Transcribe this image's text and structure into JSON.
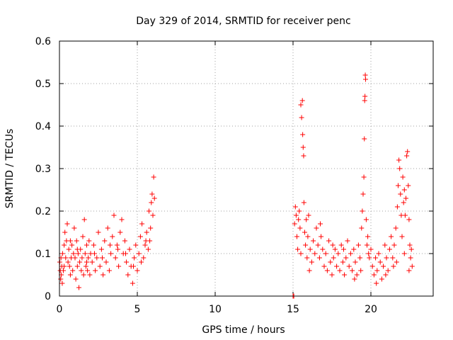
{
  "chart_data": {
    "type": "scatter",
    "title": "Day 329 of 2014, SRMTID for receiver penc",
    "xlabel": "GPS time / hours",
    "ylabel": "SRMTID / TECUs",
    "xlim": [
      0,
      24
    ],
    "ylim": [
      0,
      0.6
    ],
    "xticks": [
      0,
      5,
      10,
      15,
      20
    ],
    "xtick_labels": [
      "0",
      "5",
      "10",
      "15",
      "20"
    ],
    "yticks": [
      0,
      0.1,
      0.2,
      0.3,
      0.4,
      0.5,
      0.6
    ],
    "ytick_labels": [
      "0",
      "0.1",
      "0.2",
      "0.3",
      "0.4",
      "0.5",
      "0.6"
    ],
    "grid": true,
    "marker": "+",
    "series": [
      {
        "name": "SRMTID",
        "color": "#ff0000",
        "points": [
          [
            0.02,
            0.08
          ],
          [
            0.05,
            0.06
          ],
          [
            0.08,
            0.04
          ],
          [
            0.1,
            0.09
          ],
          [
            0.12,
            0.05
          ],
          [
            0.15,
            0.07
          ],
          [
            0.18,
            0.03
          ],
          [
            0.2,
            0.1
          ],
          [
            0.25,
            0.06
          ],
          [
            0.3,
            0.12
          ],
          [
            0.35,
            0.15
          ],
          [
            0.4,
            0.09
          ],
          [
            0.45,
            0.13
          ],
          [
            0.5,
            0.17
          ],
          [
            0.55,
            0.08
          ],
          [
            0.6,
            0.11
          ],
          [
            0.65,
            0.07
          ],
          [
            0.7,
            0.05
          ],
          [
            0.75,
            0.09
          ],
          [
            0.8,
            0.12
          ],
          [
            0.85,
            0.06
          ],
          [
            0.9,
            0.1
          ],
          [
            0.95,
            0.16
          ],
          [
            1.0,
            0.09
          ],
          [
            1.05,
            0.04
          ],
          [
            1.1,
            0.13
          ],
          [
            1.15,
            0.07
          ],
          [
            1.2,
            0.1
          ],
          [
            1.25,
            0.02
          ],
          [
            1.3,
            0.08
          ],
          [
            1.35,
            0.11
          ],
          [
            1.4,
            0.06
          ],
          [
            1.45,
            0.09
          ],
          [
            1.5,
            0.14
          ],
          [
            1.55,
            0.05
          ],
          [
            1.6,
            0.18
          ],
          [
            1.65,
            0.1
          ],
          [
            1.7,
            0.07
          ],
          [
            1.75,
            0.12
          ],
          [
            1.8,
            0.06
          ],
          [
            1.85,
            0.09
          ],
          [
            1.9,
            0.13
          ],
          [
            1.95,
            0.05
          ],
          [
            2.0,
            0.1
          ],
          [
            2.1,
            0.08
          ],
          [
            2.2,
            0.12
          ],
          [
            2.3,
            0.06
          ],
          [
            2.4,
            0.09
          ],
          [
            2.5,
            0.15
          ],
          [
            2.6,
            0.07
          ],
          [
            2.7,
            0.11
          ],
          [
            2.8,
            0.05
          ],
          [
            2.9,
            0.13
          ],
          [
            3.0,
            0.08
          ],
          [
            3.1,
            0.16
          ],
          [
            3.2,
            0.06
          ],
          [
            3.3,
            0.1
          ],
          [
            3.4,
            0.14
          ],
          [
            3.5,
            0.19
          ],
          [
            3.6,
            0.09
          ],
          [
            3.7,
            0.12
          ],
          [
            3.8,
            0.07
          ],
          [
            3.9,
            0.15
          ],
          [
            4.0,
            0.18
          ],
          [
            4.1,
            0.1
          ],
          [
            4.2,
            0.13
          ],
          [
            4.3,
            0.08
          ],
          [
            4.4,
            0.05
          ],
          [
            4.5,
            0.11
          ],
          [
            4.6,
            0.07
          ],
          [
            4.7,
            0.03
          ],
          [
            4.8,
            0.09
          ],
          [
            4.9,
            0.12
          ],
          [
            5.0,
            0.06
          ],
          [
            5.1,
            0.1
          ],
          [
            5.2,
            0.14
          ],
          [
            5.3,
            0.17
          ],
          [
            5.4,
            0.09
          ],
          [
            5.5,
            0.12
          ],
          [
            5.6,
            0.15
          ],
          [
            5.7,
            0.11
          ],
          [
            5.75,
            0.2
          ],
          [
            5.8,
            0.13
          ],
          [
            5.85,
            0.16
          ],
          [
            5.9,
            0.22
          ],
          [
            5.95,
            0.24
          ],
          [
            6.0,
            0.19
          ],
          [
            6.05,
            0.28
          ],
          [
            6.1,
            0.23
          ],
          [
            0.3,
            0.07
          ],
          [
            0.7,
            0.13
          ],
          [
            1.15,
            0.11
          ],
          [
            1.75,
            0.08
          ],
          [
            2.25,
            0.1
          ],
          [
            2.75,
            0.09
          ],
          [
            3.25,
            0.12
          ],
          [
            3.75,
            0.11
          ],
          [
            4.25,
            0.1
          ],
          [
            4.75,
            0.07
          ],
          [
            5.25,
            0.08
          ],
          [
            5.55,
            0.13
          ],
          [
            15.0,
            0.0
          ],
          [
            15.05,
            0.0
          ],
          [
            15.1,
            0.17
          ],
          [
            15.15,
            0.21
          ],
          [
            15.2,
            0.19
          ],
          [
            15.25,
            0.14
          ],
          [
            15.3,
            0.11
          ],
          [
            15.35,
            0.18
          ],
          [
            15.4,
            0.2
          ],
          [
            15.45,
            0.16
          ],
          [
            15.5,
            0.45
          ],
          [
            15.55,
            0.42
          ],
          [
            15.6,
            0.46
          ],
          [
            15.62,
            0.38
          ],
          [
            15.65,
            0.35
          ],
          [
            15.68,
            0.33
          ],
          [
            15.7,
            0.22
          ],
          [
            15.75,
            0.15
          ],
          [
            15.8,
            0.12
          ],
          [
            15.85,
            0.18
          ],
          [
            15.9,
            0.09
          ],
          [
            15.95,
            0.14
          ],
          [
            16.0,
            0.19
          ],
          [
            16.1,
            0.11
          ],
          [
            16.2,
            0.08
          ],
          [
            16.3,
            0.13
          ],
          [
            16.4,
            0.1
          ],
          [
            16.5,
            0.16
          ],
          [
            16.6,
            0.12
          ],
          [
            16.7,
            0.09
          ],
          [
            16.8,
            0.14
          ],
          [
            16.9,
            0.11
          ],
          [
            17.0,
            0.07
          ],
          [
            17.1,
            0.1
          ],
          [
            17.2,
            0.06
          ],
          [
            17.3,
            0.13
          ],
          [
            17.4,
            0.08
          ],
          [
            17.5,
            0.05
          ],
          [
            17.6,
            0.09
          ],
          [
            17.7,
            0.11
          ],
          [
            17.8,
            0.07
          ],
          [
            17.9,
            0.1
          ],
          [
            18.0,
            0.06
          ],
          [
            18.1,
            0.12
          ],
          [
            18.2,
            0.08
          ],
          [
            18.3,
            0.05
          ],
          [
            18.4,
            0.09
          ],
          [
            18.5,
            0.13
          ],
          [
            18.6,
            0.07
          ],
          [
            18.7,
            0.1
          ],
          [
            18.8,
            0.06
          ],
          [
            18.9,
            0.11
          ],
          [
            19.0,
            0.08
          ],
          [
            19.1,
            0.05
          ],
          [
            19.2,
            0.12
          ],
          [
            19.3,
            0.09
          ],
          [
            19.4,
            0.16
          ],
          [
            19.45,
            0.2
          ],
          [
            19.5,
            0.24
          ],
          [
            19.55,
            0.28
          ],
          [
            19.58,
            0.37
          ],
          [
            19.6,
            0.46
          ],
          [
            19.62,
            0.47
          ],
          [
            19.64,
            0.52
          ],
          [
            19.66,
            0.51
          ],
          [
            19.7,
            0.18
          ],
          [
            19.75,
            0.12
          ],
          [
            19.8,
            0.14
          ],
          [
            19.9,
            0.09
          ],
          [
            20.0,
            0.11
          ],
          [
            20.1,
            0.07
          ],
          [
            20.2,
            0.05
          ],
          [
            20.3,
            0.09
          ],
          [
            20.4,
            0.06
          ],
          [
            20.5,
            0.1
          ],
          [
            20.6,
            0.08
          ],
          [
            20.7,
            0.04
          ],
          [
            20.8,
            0.07
          ],
          [
            20.9,
            0.12
          ],
          [
            21.0,
            0.09
          ],
          [
            21.1,
            0.06
          ],
          [
            21.2,
            0.11
          ],
          [
            21.3,
            0.14
          ],
          [
            21.4,
            0.09
          ],
          [
            21.5,
            0.12
          ],
          [
            21.6,
            0.16
          ],
          [
            21.7,
            0.21
          ],
          [
            21.75,
            0.26
          ],
          [
            21.8,
            0.32
          ],
          [
            21.85,
            0.3
          ],
          [
            21.9,
            0.24
          ],
          [
            21.95,
            0.19
          ],
          [
            22.0,
            0.14
          ],
          [
            22.05,
            0.28
          ],
          [
            22.1,
            0.22
          ],
          [
            22.15,
            0.25
          ],
          [
            22.2,
            0.19
          ],
          [
            22.25,
            0.23
          ],
          [
            22.3,
            0.33
          ],
          [
            22.35,
            0.34
          ],
          [
            22.4,
            0.26
          ],
          [
            22.45,
            0.18
          ],
          [
            22.5,
            0.12
          ],
          [
            22.55,
            0.09
          ],
          [
            22.6,
            0.11
          ],
          [
            22.65,
            0.07
          ],
          [
            15.5,
            0.1
          ],
          [
            16.05,
            0.06
          ],
          [
            16.75,
            0.17
          ],
          [
            17.55,
            0.12
          ],
          [
            18.25,
            0.11
          ],
          [
            18.95,
            0.04
          ],
          [
            19.35,
            0.06
          ],
          [
            19.85,
            0.1
          ],
          [
            20.35,
            0.03
          ],
          [
            20.95,
            0.05
          ],
          [
            21.45,
            0.07
          ],
          [
            21.65,
            0.08
          ],
          [
            22.15,
            0.1
          ],
          [
            22.45,
            0.06
          ]
        ]
      }
    ]
  }
}
